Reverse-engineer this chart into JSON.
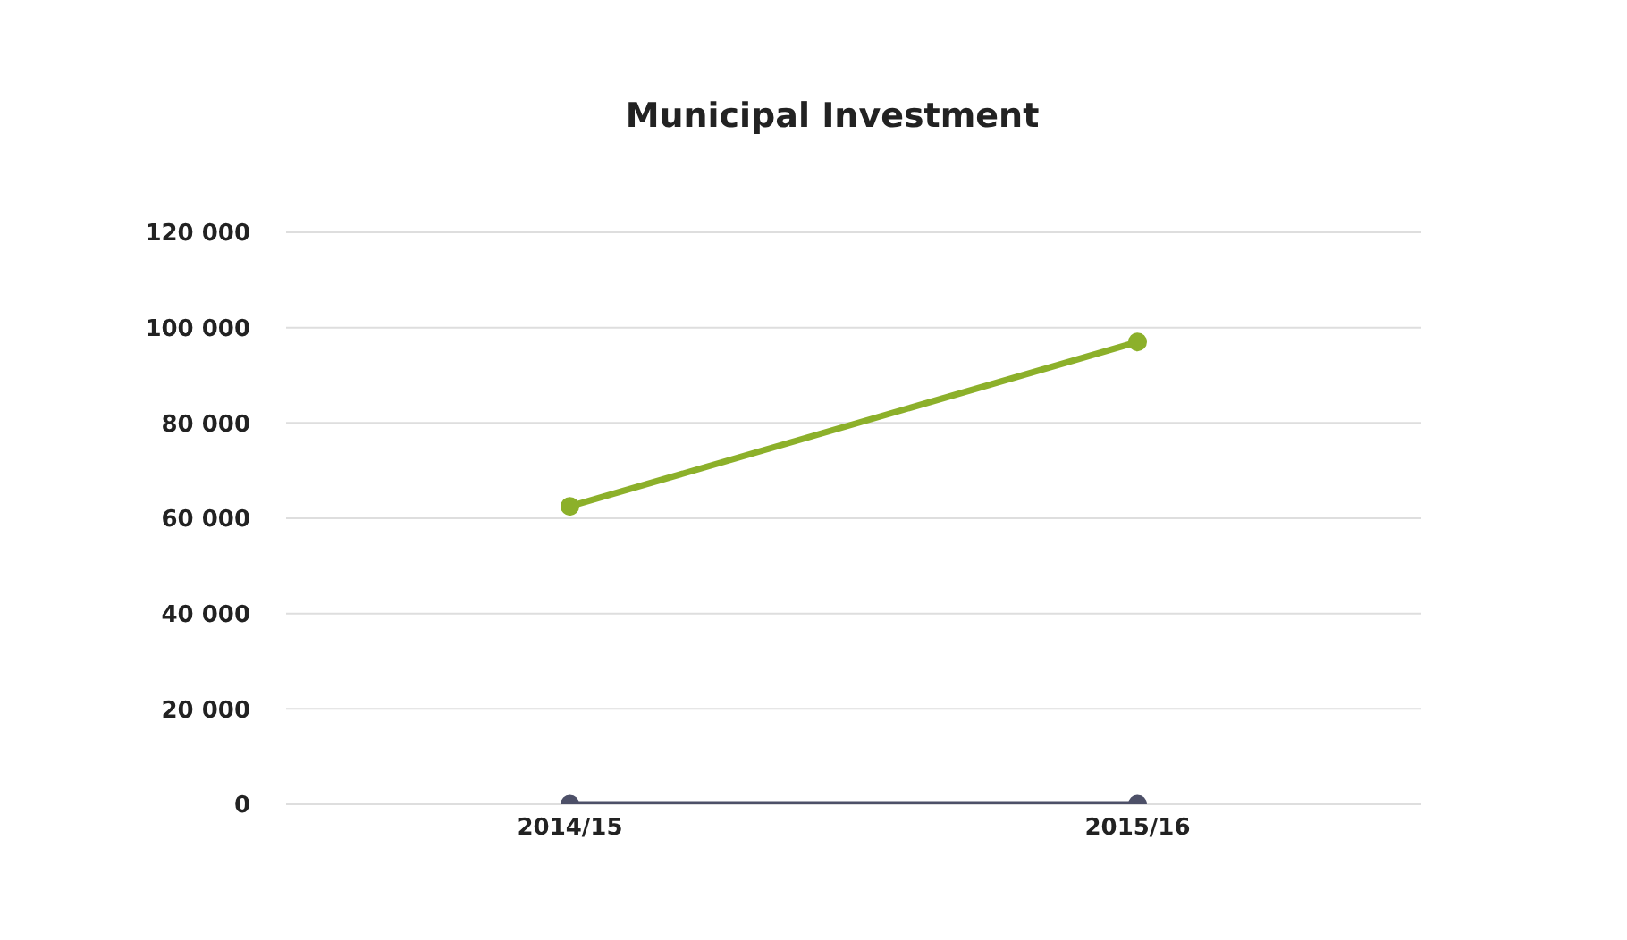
{
  "chart_data": {
    "type": "line",
    "title": "Municipal Investment",
    "categories": [
      "2014/15",
      "2015/16"
    ],
    "series": [
      {
        "color": "#8cb02a",
        "values": [
          62500,
          97000
        ]
      },
      {
        "color": "#4d5068",
        "values": [
          0,
          0
        ]
      }
    ],
    "ylim": [
      0,
      120000
    ],
    "yticks": [
      {
        "value": 0,
        "label": "0"
      },
      {
        "value": 20000,
        "label": "20 000"
      },
      {
        "value": 40000,
        "label": "40 000"
      },
      {
        "value": 60000,
        "label": "60 000"
      },
      {
        "value": 80000,
        "label": "80 000"
      },
      {
        "value": 100000,
        "label": "100 000"
      },
      {
        "value": 120000,
        "label": "120 000"
      }
    ],
    "grid": "y",
    "marker": "circle",
    "legend": false
  }
}
